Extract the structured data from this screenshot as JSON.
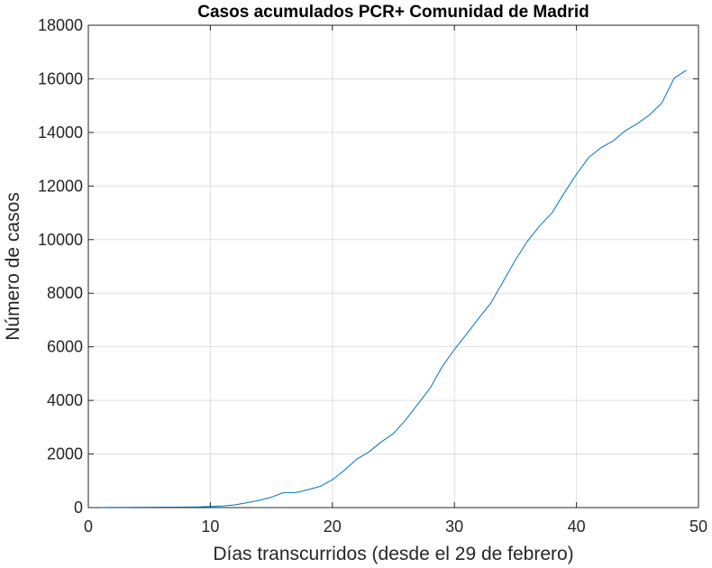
{
  "chart_data": {
    "type": "line",
    "title": "Casos acumulados PCR+ Comunidad de Madrid",
    "xlabel": "Días transcurridos (desde el 29 de febrero)",
    "ylabel": "Número de casos",
    "xlim": [
      0,
      50
    ],
    "ylim": [
      0,
      18000
    ],
    "xticks": [
      0,
      10,
      20,
      30,
      40,
      50
    ],
    "yticks": [
      0,
      2000,
      4000,
      6000,
      8000,
      10000,
      12000,
      14000,
      16000,
      18000
    ],
    "grid": true,
    "series": [
      {
        "color": "#0072bd",
        "x": [
          1,
          2,
          3,
          4,
          5,
          6,
          7,
          8,
          9,
          10,
          11,
          12,
          13,
          14,
          15,
          16,
          17,
          18,
          19,
          20,
          21,
          22,
          23,
          24,
          25,
          26,
          27,
          28,
          29,
          30,
          31,
          32,
          33,
          34,
          35,
          36,
          37,
          38,
          39,
          40,
          41,
          42,
          43,
          44,
          45,
          46,
          47,
          48,
          49
        ],
        "values": [
          5,
          8,
          10,
          12,
          13,
          15,
          16,
          20,
          25,
          40,
          60,
          100,
          180,
          270,
          390,
          560,
          560,
          670,
          790,
          1040,
          1400,
          1810,
          2080,
          2450,
          2760,
          3270,
          3860,
          4450,
          5260,
          5900,
          6480,
          7070,
          7640,
          8440,
          9240,
          9950,
          10520,
          11000,
          11740,
          12440,
          13060,
          13430,
          13680,
          14060,
          14330,
          14660,
          15100,
          16020,
          16320
        ]
      }
    ]
  }
}
